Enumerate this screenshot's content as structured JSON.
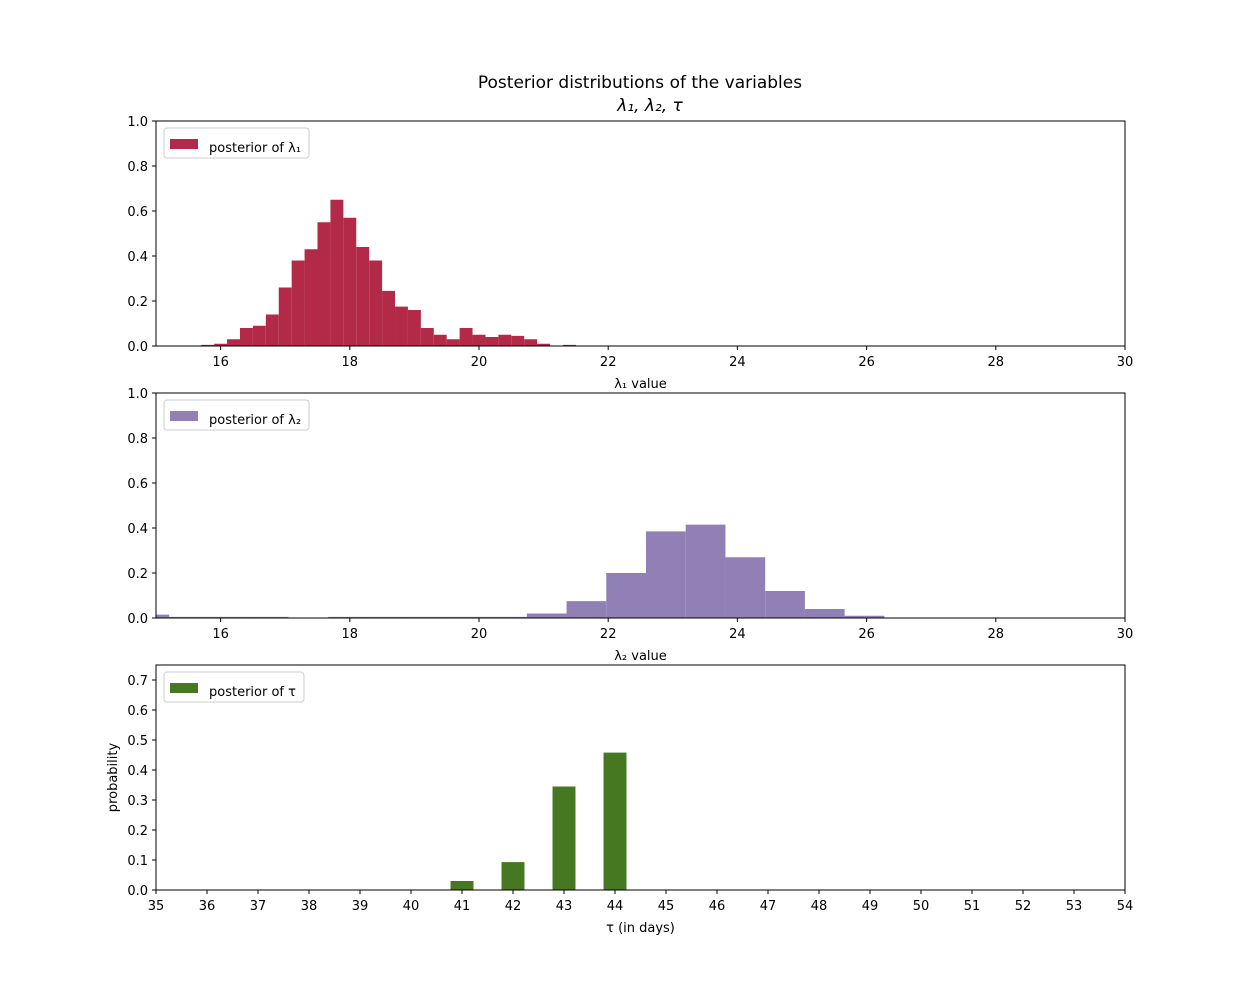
{
  "figure": {
    "title_line1": "Posterior distributions of the variables",
    "title_line2": "λ₁, λ₂, τ"
  },
  "chart_data": [
    {
      "type": "bar",
      "color": "#B22A48",
      "legend": "posterior of λ₁",
      "legend_placement": "top-left",
      "xlabel": "λ₁ value",
      "ylabel": "",
      "xlim": [
        15,
        30
      ],
      "ylim": [
        0,
        1.0
      ],
      "xticks": [
        16,
        18,
        20,
        22,
        24,
        26,
        28,
        30
      ],
      "yticks": [
        0.0,
        0.2,
        0.4,
        0.6,
        0.8,
        1.0
      ],
      "bin_start": 15.7,
      "bin_width": 0.2,
      "values": [
        0.005,
        0.01,
        0.03,
        0.08,
        0.09,
        0.14,
        0.26,
        0.38,
        0.43,
        0.55,
        0.65,
        0.57,
        0.44,
        0.38,
        0.245,
        0.175,
        0.16,
        0.08,
        0.05,
        0.03,
        0.08,
        0.05,
        0.04,
        0.05,
        0.045,
        0.03,
        0.01,
        0.0,
        0.005
      ]
    },
    {
      "type": "bar",
      "color": "#9080B5",
      "legend": "posterior of λ₂",
      "legend_placement": "top-left",
      "xlabel": "λ₂ value",
      "ylabel": "",
      "xlim": [
        15,
        30
      ],
      "ylim": [
        0,
        1.0
      ],
      "xticks": [
        16,
        18,
        20,
        22,
        24,
        26,
        28,
        30
      ],
      "yticks": [
        0.0,
        0.2,
        0.4,
        0.6,
        0.8,
        1.0
      ],
      "bin_start": 14.59,
      "bin_width": 0.615,
      "values": [
        0.015,
        0.005,
        0.005,
        0.005,
        0.0,
        0.005,
        0.005,
        0.005,
        0.005,
        0.005,
        0.02,
        0.075,
        0.2,
        0.385,
        0.415,
        0.27,
        0.12,
        0.04,
        0.01
      ]
    },
    {
      "type": "bar",
      "color": "#467821",
      "legend": "posterior of τ",
      "legend_placement": "top-left",
      "xlabel": "τ (in days)",
      "ylabel": "probability",
      "xlim": [
        35,
        54
      ],
      "ylim": [
        0,
        0.75
      ],
      "xticks": [
        35,
        36,
        37,
        38,
        39,
        40,
        41,
        42,
        43,
        44,
        45,
        46,
        47,
        48,
        49,
        50,
        51,
        52,
        53,
        54
      ],
      "yticks": [
        0.0,
        0.1,
        0.2,
        0.3,
        0.4,
        0.5,
        0.6,
        0.7
      ],
      "bar_width": 0.45,
      "x": [
        41,
        42,
        43,
        44
      ],
      "values": [
        0.03,
        0.093,
        0.345,
        0.458
      ]
    }
  ]
}
